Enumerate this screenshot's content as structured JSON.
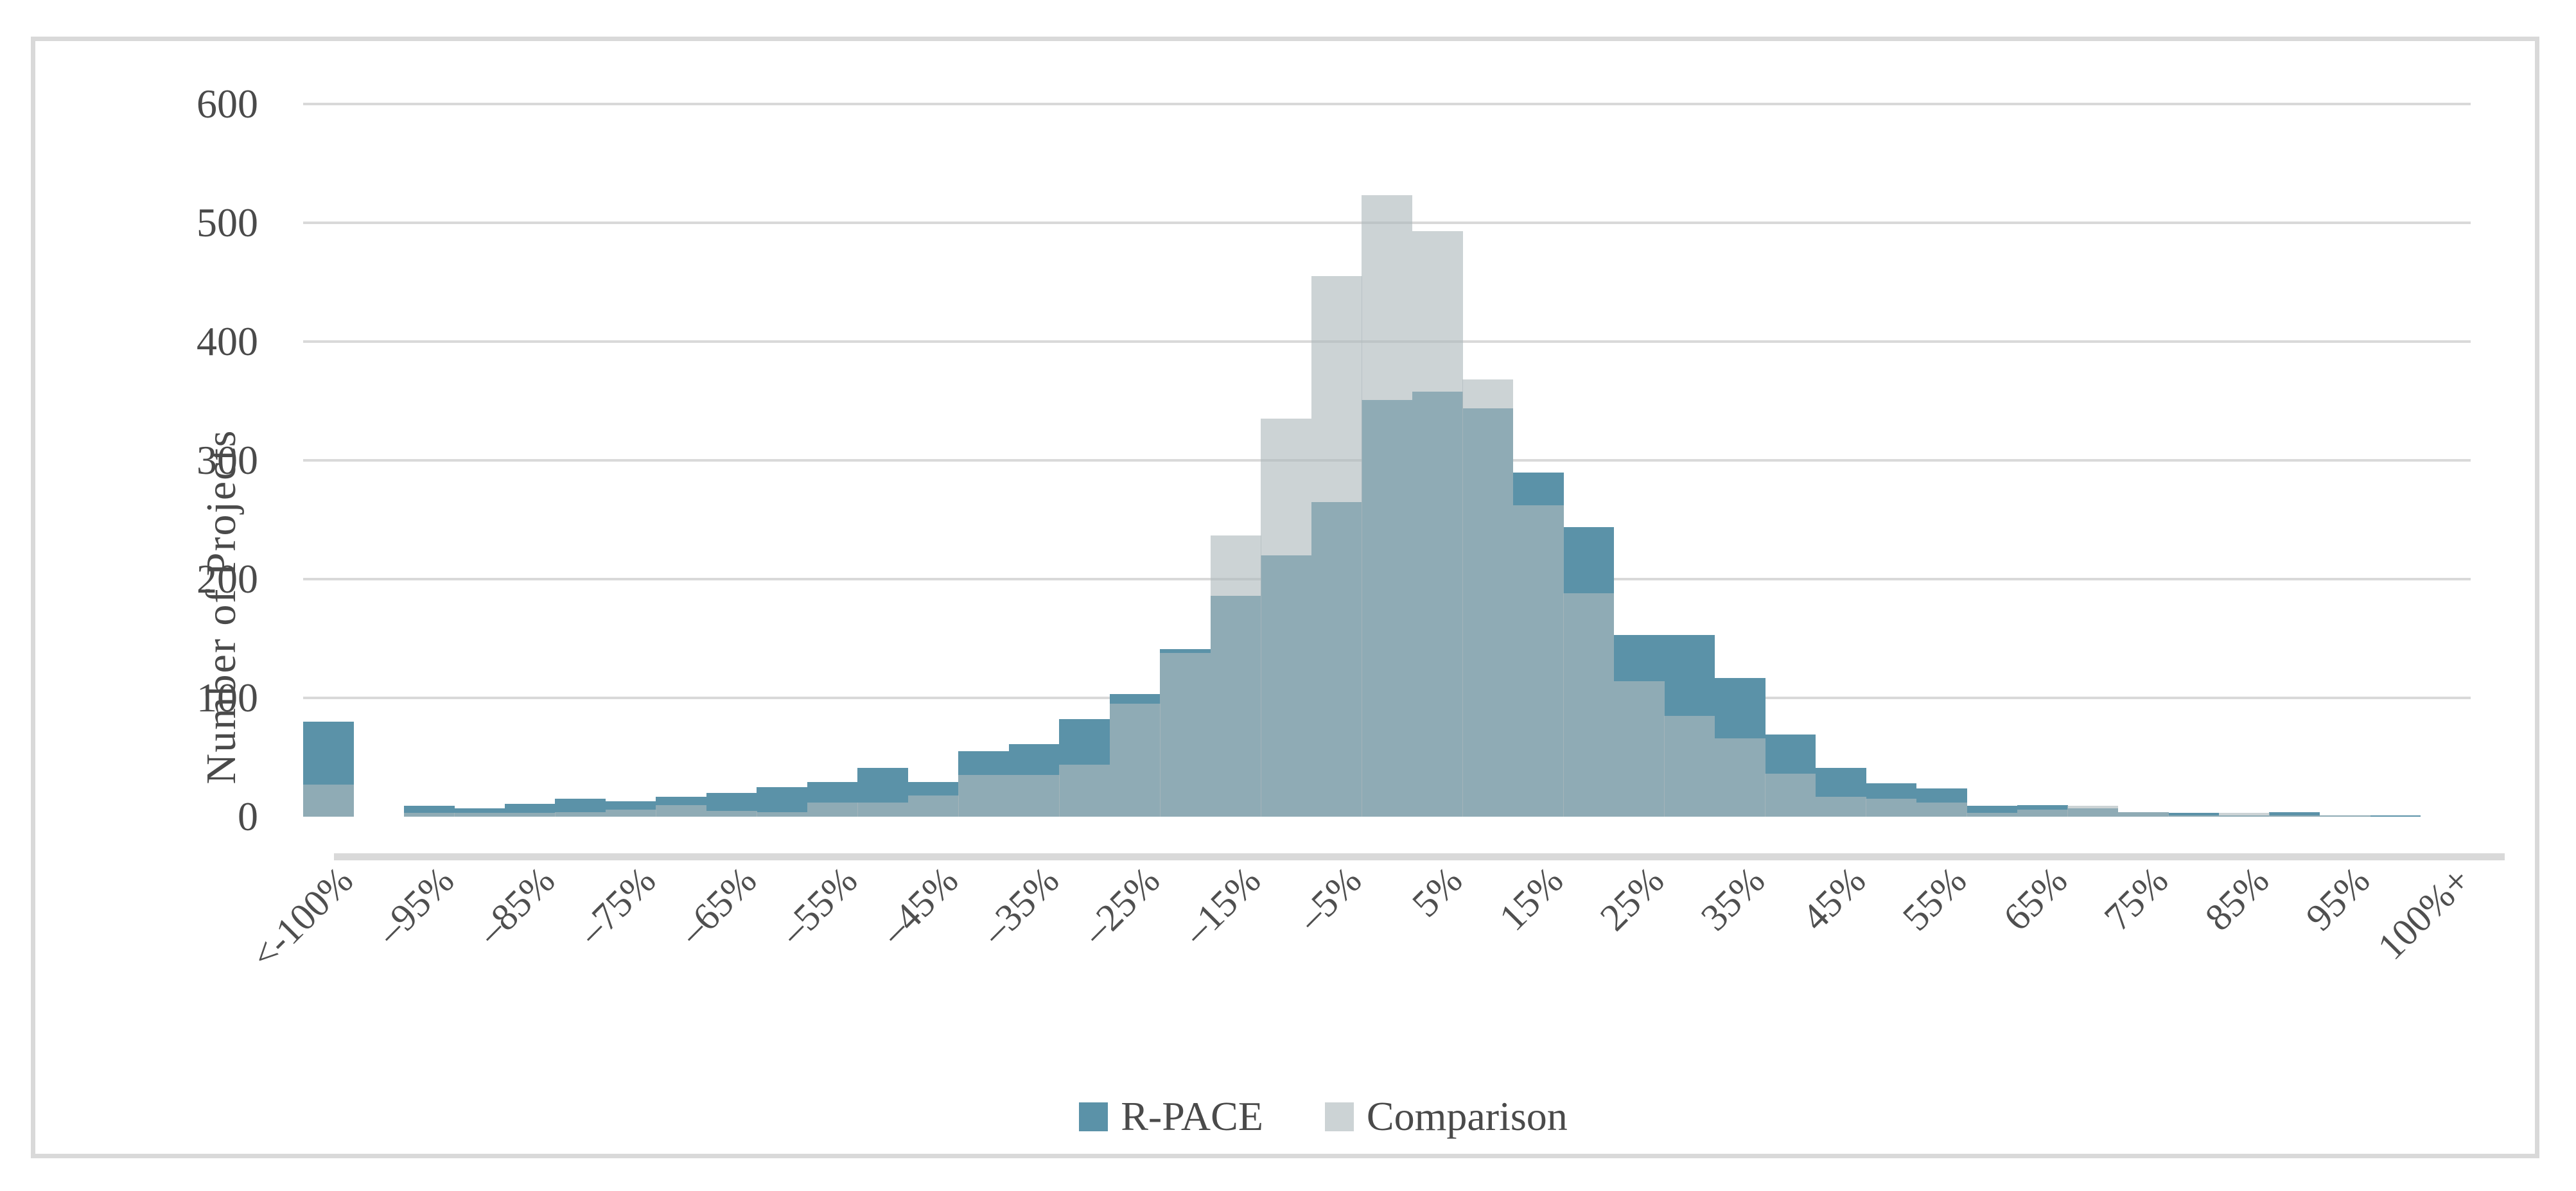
{
  "chart_data": {
    "type": "bar",
    "subtype": "overlapping-histogram",
    "title": "",
    "xlabel": "",
    "ylabel": "Number  of Projects",
    "ylim": [
      0,
      600
    ],
    "yticks": [
      0,
      100,
      200,
      300,
      400,
      500,
      600
    ],
    "grid": "horizontal",
    "legend_position": "bottom",
    "bin_labels": [
      "<-100%",
      "",
      "–95%",
      "",
      "–85%",
      "",
      "–75%",
      "",
      "–65%",
      "",
      "–55%",
      "",
      "–45%",
      "",
      "–35%",
      "",
      "–25%",
      "",
      "–15%",
      "",
      "–5%",
      "",
      "5%",
      "",
      "15%",
      "",
      "25%",
      "",
      "35%",
      "",
      "45%",
      "",
      "55%",
      "",
      "65%",
      "",
      "75%",
      "",
      "85%",
      "",
      "95%",
      "",
      "100%+"
    ],
    "series": [
      {
        "name": "R-PACE",
        "color": "#5B92A8",
        "values": [
          80,
          0,
          9,
          7,
          11,
          15,
          13,
          17,
          20,
          25,
          29,
          41,
          29,
          55,
          61,
          82,
          103,
          141,
          186,
          220,
          265,
          351,
          358,
          344,
          290,
          244,
          153,
          153,
          117,
          69,
          41,
          28,
          24,
          9,
          10,
          7,
          4,
          3,
          1,
          4,
          1,
          1,
          0
        ]
      },
      {
        "name": "Comparison",
        "color": "#CCD3D5",
        "overlay_color": "rgba(175,186,189,0.63)",
        "values": [
          27,
          0,
          3,
          3,
          3,
          4,
          6,
          10,
          5,
          4,
          12,
          12,
          18,
          35,
          35,
          44,
          95,
          138,
          237,
          335,
          455,
          523,
          493,
          368,
          262,
          188,
          114,
          85,
          66,
          36,
          17,
          15,
          12,
          3,
          6,
          9,
          4,
          1,
          3,
          1,
          1,
          0,
          0
        ]
      }
    ]
  },
  "style": {
    "axis_color": "#D9D9D9",
    "text_color": "#4A4A4A"
  }
}
